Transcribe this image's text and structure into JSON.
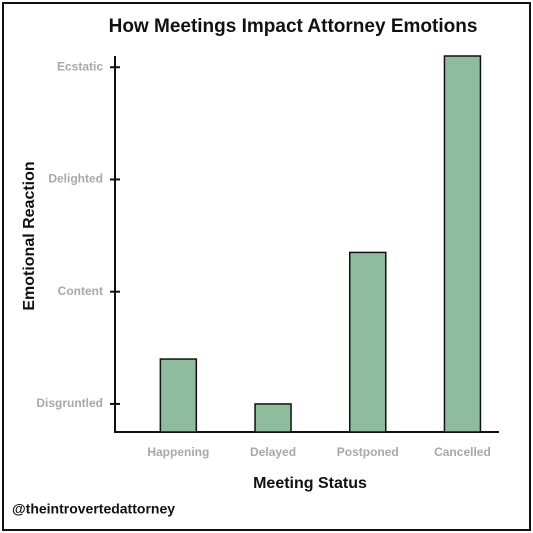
{
  "chart_data": {
    "type": "bar",
    "title": "How Meetings Impact Attorney Emotions",
    "x_label": "Meeting Status",
    "y_label": "Emotional Reaction",
    "credit": "@theintrovertedattorney",
    "categories": [
      "Happening",
      "Delayed",
      "Postponed",
      "Cancelled"
    ],
    "values": [
      1.4,
      1.0,
      2.35,
      4.1
    ],
    "color": "#8fbc9c",
    "ylim": [
      0.75,
      4.1
    ],
    "yticks": [
      {
        "value": 1,
        "label": "Disgruntled"
      },
      {
        "value": 2,
        "label": "Content"
      },
      {
        "value": 3,
        "label": "Delighted"
      },
      {
        "value": 4,
        "label": "Ecstatic"
      }
    ]
  }
}
